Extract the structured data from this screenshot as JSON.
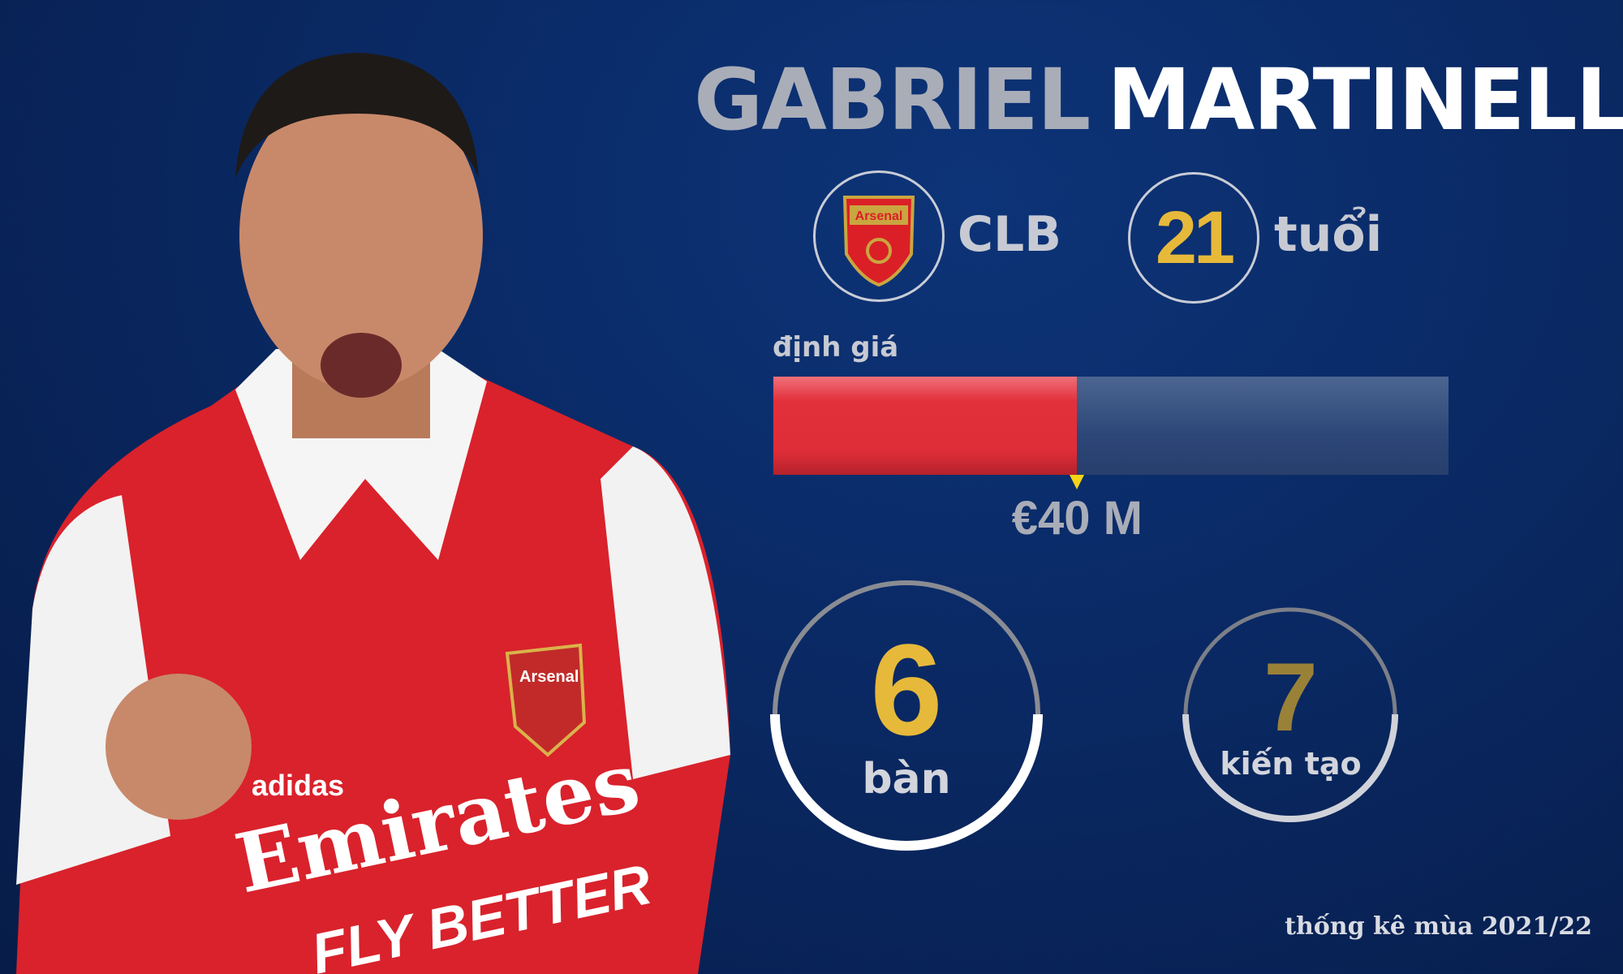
{
  "player": {
    "first_name": "GABRIEL",
    "last_name": "MARTINELLI",
    "shirt_sponsor": "Emirates",
    "shirt_slogan": "FLY BETTER",
    "shirt_brand": "adidas",
    "crest_text": "Arsenal"
  },
  "club": {
    "label": "CLB",
    "crest_text": "Arsenal",
    "crest_icon": "arsenal-crest-icon"
  },
  "age": {
    "value": "21",
    "label": "tuổi"
  },
  "valuation": {
    "label": "định giá",
    "text": "€40 M",
    "fill_percent": 45
  },
  "goals": {
    "value": "6",
    "label": "bàn"
  },
  "assists": {
    "value": "7",
    "label": "kiến tạo"
  },
  "footer": "thống kê mùa 2021/22",
  "colors": {
    "background": "#0a2a66",
    "gold": "#e6b93a",
    "red": "#e02e38",
    "gray": "#a9adb8"
  }
}
